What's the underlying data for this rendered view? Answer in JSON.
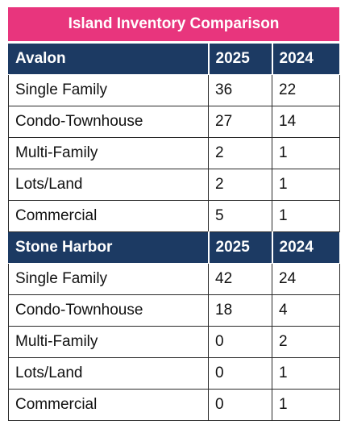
{
  "title": "Island Inventory Comparison",
  "sections": [
    {
      "header": [
        "Avalon",
        "2025",
        "2024"
      ],
      "rows": [
        [
          "Single Family",
          36,
          22
        ],
        [
          "Condo-Townhouse",
          27,
          14
        ],
        [
          "Multi-Family",
          2,
          1
        ],
        [
          "Lots/Land",
          2,
          1
        ],
        [
          "Commercial",
          5,
          1
        ]
      ]
    },
    {
      "header": [
        "Stone Harbor",
        "2025",
        "2024"
      ],
      "rows": [
        [
          "Single Family",
          42,
          24
        ],
        [
          "Condo-Townhouse",
          18,
          4
        ],
        [
          "Multi-Family",
          0,
          2
        ],
        [
          "Lots/Land",
          0,
          1
        ],
        [
          "Commercial",
          0,
          1
        ]
      ]
    }
  ]
}
